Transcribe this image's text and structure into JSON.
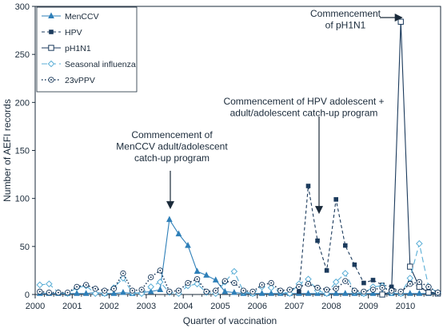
{
  "chart_data": {
    "type": "line",
    "xlabel": "Quarter of vaccination",
    "ylabel": "Number of AEFI records",
    "xlim": [
      2000,
      2010.95
    ],
    "ylim": [
      0,
      300
    ],
    "x_ticks": [
      "2000",
      "2001",
      "2002",
      "2003",
      "2004",
      "2005",
      "2006",
      "2007",
      "2008",
      "2009",
      "2010"
    ],
    "y_ticks": [
      "0",
      "50",
      "100",
      "150",
      "200",
      "250",
      "300"
    ],
    "grid": false,
    "legend_position": "top-left",
    "series": [
      {
        "name": "MenCCV",
        "color": "#2e7fb8",
        "dash": "solid",
        "marker": "triangle-filled",
        "points": [
          [
            2000.125,
            1
          ],
          [
            2000.375,
            1
          ],
          [
            2000.625,
            1
          ],
          [
            2000.875,
            1
          ],
          [
            2001.125,
            1
          ],
          [
            2001.375,
            1
          ],
          [
            2001.625,
            2
          ],
          [
            2001.875,
            1
          ],
          [
            2002.125,
            1
          ],
          [
            2002.375,
            2
          ],
          [
            2002.625,
            1
          ],
          [
            2002.875,
            2
          ],
          [
            2003.125,
            3
          ],
          [
            2003.375,
            5
          ],
          [
            2003.625,
            78
          ],
          [
            2003.875,
            63
          ],
          [
            2004.125,
            51
          ],
          [
            2004.375,
            24
          ],
          [
            2004.625,
            20
          ],
          [
            2004.875,
            15
          ],
          [
            2005.125,
            3
          ],
          [
            2005.375,
            2
          ],
          [
            2005.625,
            1
          ],
          [
            2005.875,
            1
          ],
          [
            2006.125,
            1
          ],
          [
            2006.375,
            1
          ],
          [
            2006.625,
            1
          ],
          [
            2006.875,
            1
          ],
          [
            2007.125,
            1
          ],
          [
            2007.375,
            1
          ],
          [
            2007.625,
            1
          ],
          [
            2007.875,
            1
          ],
          [
            2008.125,
            1
          ],
          [
            2008.375,
            1
          ],
          [
            2008.625,
            1
          ],
          [
            2008.875,
            1
          ],
          [
            2009.125,
            1
          ],
          [
            2009.375,
            1
          ],
          [
            2009.625,
            1
          ],
          [
            2009.875,
            1
          ],
          [
            2010.125,
            1
          ],
          [
            2010.375,
            1
          ],
          [
            2010.625,
            1
          ],
          [
            2010.875,
            1
          ]
        ]
      },
      {
        "name": "HPV",
        "color": "#1b3a5c",
        "dash": "dashed",
        "marker": "square-filled",
        "points": [
          [
            2007.125,
            3
          ],
          [
            2007.375,
            113
          ],
          [
            2007.625,
            56
          ],
          [
            2007.875,
            25
          ],
          [
            2008.125,
            99
          ],
          [
            2008.375,
            51
          ],
          [
            2008.625,
            31
          ],
          [
            2008.875,
            12
          ],
          [
            2009.125,
            15
          ],
          [
            2009.375,
            10
          ],
          [
            2009.625,
            8
          ],
          [
            2009.875,
            2
          ],
          [
            2010.125,
            12
          ],
          [
            2010.375,
            8
          ],
          [
            2010.625,
            3
          ],
          [
            2010.875,
            1
          ]
        ]
      },
      {
        "name": "pH1N1",
        "color": "#1b3a5c",
        "dash": "solid",
        "marker": "square-open",
        "points": [
          [
            2009.375,
            0
          ],
          [
            2009.625,
            3
          ],
          [
            2009.875,
            284
          ],
          [
            2010.125,
            29
          ],
          [
            2010.375,
            8
          ],
          [
            2010.625,
            2
          ],
          [
            2010.875,
            1
          ]
        ]
      },
      {
        "name": "Seasonal influenza",
        "color": "#5aaed6",
        "dash": "longdash",
        "marker": "diamond-open",
        "points": [
          [
            2000.125,
            10
          ],
          [
            2000.375,
            11
          ],
          [
            2000.625,
            2
          ],
          [
            2000.875,
            1
          ],
          [
            2001.125,
            7
          ],
          [
            2001.375,
            9
          ],
          [
            2001.625,
            1
          ],
          [
            2001.875,
            1
          ],
          [
            2002.125,
            7
          ],
          [
            2002.375,
            17
          ],
          [
            2002.625,
            2
          ],
          [
            2002.875,
            1
          ],
          [
            2003.125,
            8
          ],
          [
            2003.375,
            13
          ],
          [
            2003.625,
            2
          ],
          [
            2003.875,
            1
          ],
          [
            2004.125,
            9
          ],
          [
            2004.375,
            11
          ],
          [
            2004.625,
            2
          ],
          [
            2004.875,
            1
          ],
          [
            2005.125,
            13
          ],
          [
            2005.375,
            24
          ],
          [
            2005.625,
            3
          ],
          [
            2005.875,
            1
          ],
          [
            2006.125,
            8
          ],
          [
            2006.375,
            7
          ],
          [
            2006.625,
            3
          ],
          [
            2006.875,
            1
          ],
          [
            2007.125,
            11
          ],
          [
            2007.375,
            16
          ],
          [
            2007.625,
            4
          ],
          [
            2007.875,
            1
          ],
          [
            2008.125,
            13
          ],
          [
            2008.375,
            22
          ],
          [
            2008.625,
            3
          ],
          [
            2008.875,
            1
          ],
          [
            2009.125,
            8
          ],
          [
            2009.375,
            9
          ],
          [
            2009.625,
            2
          ],
          [
            2009.875,
            1
          ],
          [
            2010.125,
            17
          ],
          [
            2010.375,
            53
          ],
          [
            2010.625,
            8
          ],
          [
            2010.875,
            2
          ]
        ]
      },
      {
        "name": "23vPPV",
        "color": "#1b3a5c",
        "dash": "dotted",
        "marker": "circle-dot",
        "points": [
          [
            2000.125,
            3
          ],
          [
            2000.375,
            2
          ],
          [
            2000.625,
            2
          ],
          [
            2000.875,
            2
          ],
          [
            2001.125,
            8
          ],
          [
            2001.375,
            10
          ],
          [
            2001.625,
            6
          ],
          [
            2001.875,
            4
          ],
          [
            2002.125,
            6
          ],
          [
            2002.375,
            22
          ],
          [
            2002.625,
            4
          ],
          [
            2002.875,
            5
          ],
          [
            2003.125,
            18
          ],
          [
            2003.375,
            25
          ],
          [
            2003.625,
            3
          ],
          [
            2003.875,
            4
          ],
          [
            2004.125,
            12
          ],
          [
            2004.375,
            16
          ],
          [
            2004.625,
            3
          ],
          [
            2004.875,
            4
          ],
          [
            2005.125,
            14
          ],
          [
            2005.375,
            12
          ],
          [
            2005.625,
            4
          ],
          [
            2005.875,
            3
          ],
          [
            2006.125,
            10
          ],
          [
            2006.375,
            12
          ],
          [
            2006.625,
            4
          ],
          [
            2006.875,
            5
          ],
          [
            2007.125,
            8
          ],
          [
            2007.375,
            11
          ],
          [
            2007.625,
            7
          ],
          [
            2007.875,
            5
          ],
          [
            2008.125,
            6
          ],
          [
            2008.375,
            14
          ],
          [
            2008.625,
            4
          ],
          [
            2008.875,
            3
          ],
          [
            2009.125,
            5
          ],
          [
            2009.375,
            7
          ],
          [
            2009.625,
            4
          ],
          [
            2009.875,
            3
          ],
          [
            2010.125,
            11
          ],
          [
            2010.375,
            13
          ],
          [
            2010.625,
            8
          ],
          [
            2010.875,
            2
          ]
        ]
      }
    ],
    "annotations": [
      {
        "name": "annotation-menccv",
        "lines": [
          "Commencement of",
          "MenCCV adult/adolescent",
          "catch-up program"
        ],
        "arrow_to": [
          2003.625,
          93
        ],
        "arrow_dir": "down"
      },
      {
        "name": "annotation-hpv",
        "lines": [
          "Commencement of HPV adolescent +",
          "adult/adolescent catch-up program"
        ],
        "arrow_to": [
          2007.75,
          88
        ],
        "arrow_dir": "down"
      },
      {
        "name": "annotation-ph1n1",
        "lines": [
          "Commencement",
          "of pH1N1"
        ],
        "arrow_to": [
          2009.82,
          286
        ],
        "arrow_dir": "right"
      }
    ]
  }
}
